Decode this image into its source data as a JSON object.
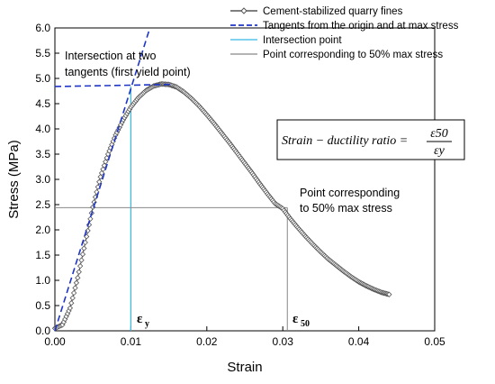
{
  "chart_data": {
    "type": "line",
    "xlabel": "Strain",
    "ylabel": "Stress (MPa)",
    "xlim": [
      0,
      0.05
    ],
    "ylim": [
      0,
      6.0
    ],
    "x_ticks": [
      "0.00",
      "0.01",
      "0.02",
      "0.03",
      "0.04",
      "0.05"
    ],
    "y_ticks": [
      "0.0",
      "0.5",
      "1.0",
      "1.5",
      "2.0",
      "2.5",
      "3.0",
      "3.5",
      "4.0",
      "4.5",
      "5.0",
      "5.5",
      "6.0"
    ],
    "legend_position": "top-right",
    "grid": false,
    "series": [
      {
        "name": "Cement-stabilized quarry fines",
        "color": "#555555",
        "marker": "open-diamond",
        "x": [
          0.0,
          0.001,
          0.002,
          0.003,
          0.004,
          0.005,
          0.006,
          0.007,
          0.008,
          0.009,
          0.01,
          0.011,
          0.012,
          0.013,
          0.014,
          0.015,
          0.016,
          0.017,
          0.018,
          0.019,
          0.02,
          0.021,
          0.022,
          0.023,
          0.024,
          0.025,
          0.026,
          0.027,
          0.028,
          0.029,
          0.03,
          0.031,
          0.032,
          0.033,
          0.034,
          0.035,
          0.036,
          0.037,
          0.038,
          0.039,
          0.04,
          0.041,
          0.042,
          0.043,
          0.044
        ],
        "y": [
          0.05,
          0.12,
          0.45,
          1.05,
          1.75,
          2.45,
          3.05,
          3.5,
          3.88,
          4.18,
          4.43,
          4.62,
          4.76,
          4.85,
          4.89,
          4.88,
          4.83,
          4.73,
          4.6,
          4.45,
          4.28,
          4.1,
          3.91,
          3.72,
          3.52,
          3.32,
          3.12,
          2.91,
          2.71,
          2.52,
          2.42,
          2.22,
          2.04,
          1.87,
          1.71,
          1.56,
          1.42,
          1.3,
          1.18,
          1.07,
          0.97,
          0.89,
          0.82,
          0.76,
          0.72
        ]
      },
      {
        "name": "Tangents from the origin and at max stress",
        "color": "#1f35c8",
        "style": "dashed",
        "lines": [
          {
            "x": [
              0.0,
              0.0124
            ],
            "y": [
              0.0,
              5.95
            ]
          },
          {
            "x": [
              0.0,
              0.0152
            ],
            "y": [
              4.84,
              4.88
            ]
          }
        ]
      },
      {
        "name": "Intersection point",
        "color": "#33b8e8",
        "lines": [
          {
            "x": [
              0.01,
              0.01
            ],
            "y": [
              0.0,
              4.84
            ]
          }
        ]
      },
      {
        "name": "Point corresponding to 50% max stress",
        "color": "#888888",
        "lines": [
          {
            "x": [
              0.0,
              0.0306
            ],
            "y": [
              2.44,
              2.44
            ]
          },
          {
            "x": [
              0.0306,
              0.0306
            ],
            "y": [
              0.0,
              2.44
            ]
          }
        ]
      }
    ],
    "annotations": {
      "intersection_line1": "Intersection at two",
      "intersection_line2": "tangents (first yield point)",
      "half_line1": "Point corresponding",
      "half_line2": "to 50% max stress",
      "eps_y": "ε",
      "eps_y_sub": "y",
      "eps_50": "ε",
      "eps_50_sub": "50",
      "formula_lhs": "Strain − ductility ratio =",
      "formula_num": "ε50",
      "formula_den": "εy"
    }
  }
}
